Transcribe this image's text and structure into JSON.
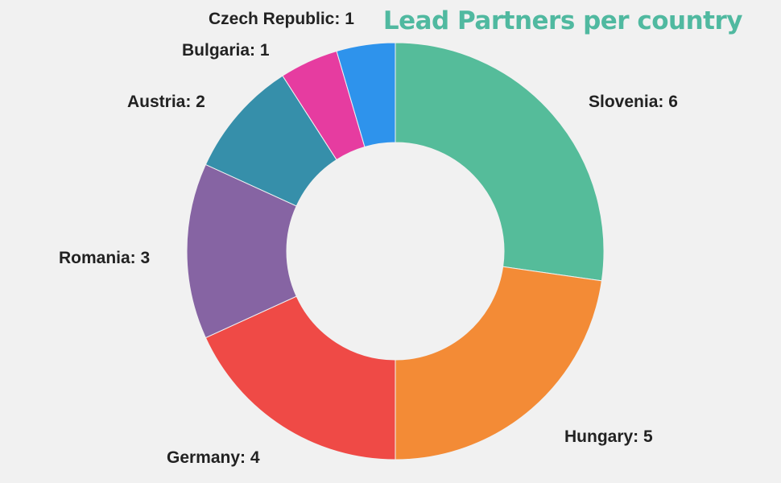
{
  "chart_data": {
    "type": "pie",
    "variant": "donut",
    "title": "Lead Partners per country",
    "title_color": "#50b9a0",
    "slices": [
      {
        "label": "Slovenia",
        "value": 6,
        "color": "#55bc9a"
      },
      {
        "label": "Hungary",
        "value": 5,
        "color": "#f38b36"
      },
      {
        "label": "Germany",
        "value": 4,
        "color": "#ef4a46"
      },
      {
        "label": "Romania",
        "value": 3,
        "color": "#8664a3"
      },
      {
        "label": "Austria",
        "value": 2,
        "color": "#368faa"
      },
      {
        "label": "Bulgaria",
        "value": 1,
        "color": "#e63ca0"
      },
      {
        "label": "Czech Republic",
        "value": 1,
        "color": "#2e93ec"
      }
    ],
    "label_format": "{label}: {value}",
    "direction": "clockwise",
    "start_angle": "top"
  }
}
